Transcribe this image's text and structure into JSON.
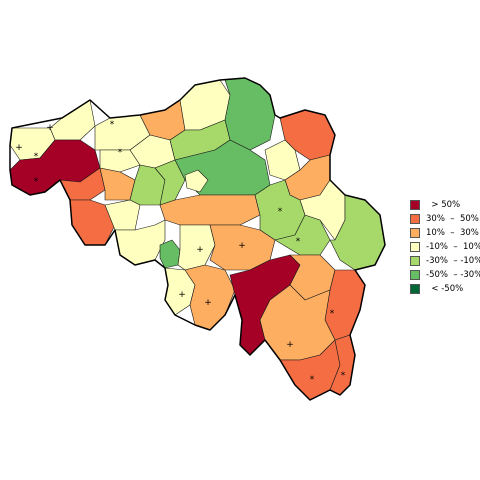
{
  "legend": {
    "items": [
      {
        "label": "  > 50%",
        "color": "#a50026"
      },
      {
        "label": "30%  –  50%",
        "color": "#f46d43"
      },
      {
        "label": "10%  –  30%",
        "color": "#fdae61"
      },
      {
        "label": "-10%  –  10%",
        "color": "#ffffbf"
      },
      {
        "label": "-30%  – -10%",
        "color": "#a6d96a"
      },
      {
        "label": "-50%  – -30%",
        "color": "#66bd63"
      },
      {
        "label": "  < -50%",
        "color": "#006837"
      }
    ]
  }
}
